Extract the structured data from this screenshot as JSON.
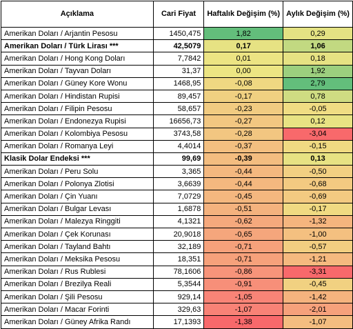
{
  "headers": [
    "Açıklama",
    "Cari Fiyat",
    "Haftalık Değişim (%)",
    "Aylık Değişim (%)"
  ],
  "rows": [
    {
      "label": "Amerikan Doları / Arjantin Pesosu",
      "price": "1450,475",
      "weekly": "1,82",
      "monthly": "0,29",
      "wcol": "#63be7b",
      "mcol": "#e4e283",
      "bold": false
    },
    {
      "label": "Amerikan Doları / Türk Lirası ***",
      "price": "42,5079",
      "weekly": "0,17",
      "monthly": "1,06",
      "wcol": "#e6e283",
      "mcol": "#c2d981",
      "bold": true
    },
    {
      "label": "Amerikan Doları / Hong Kong Doları",
      "price": "7,7842",
      "weekly": "0,01",
      "monthly": "0,18",
      "wcol": "#ece483",
      "mcol": "#e6e283",
      "bold": false
    },
    {
      "label": "Amerikan Doları / Tayvan Doları",
      "price": "31,37",
      "weekly": "0,00",
      "monthly": "1,92",
      "wcol": "#ece583",
      "mcol": "#9ccf7e",
      "bold": false
    },
    {
      "label": "Amerikan Doları / Güney Kore Wonu",
      "price": "1468,95",
      "weekly": "-0,08",
      "monthly": "2,79",
      "wcol": "#efd882",
      "mcol": "#63be7b",
      "bold": false
    },
    {
      "label": "Amerikan Doları / Hindistan Rupisi",
      "price": "89,457",
      "weekly": "-0,17",
      "monthly": "0,78",
      "wcol": "#f0d081",
      "mcol": "#cfdc82",
      "bold": false
    },
    {
      "label": "Amerikan Doları / Filipin Pesosu",
      "price": "58,657",
      "weekly": "-0,23",
      "monthly": "-0,05",
      "wcol": "#f1cb81",
      "mcol": "#f0dd83",
      "bold": false
    },
    {
      "label": "Amerikan Doları / Endonezya Rupisi",
      "price": "16656,73",
      "weekly": "-0,27",
      "monthly": "0,12",
      "wcol": "#f2c781",
      "mcol": "#e8e383",
      "bold": false
    },
    {
      "label": "Amerikan Doları / Kolombiya Pesosu",
      "price": "3743,58",
      "weekly": "-0,28",
      "monthly": "-3,04",
      "wcol": "#f2c681",
      "mcol": "#f8696b",
      "bold": false
    },
    {
      "label": "Amerikan Doları / Romanya Leyi",
      "price": "4,4014",
      "weekly": "-0,37",
      "monthly": "-0,15",
      "wcol": "#f3bf80",
      "mcol": "#f0da82",
      "bold": false
    },
    {
      "label": "Klasik Dolar Endeksi ***",
      "price": "99,69",
      "weekly": "-0,39",
      "monthly": "0,13",
      "wcol": "#f3bd80",
      "mcol": "#e7e283",
      "bold": true
    },
    {
      "label": "Amerikan Doları / Peru Solu",
      "price": "3,365",
      "weekly": "-0,44",
      "monthly": "-0,50",
      "wcol": "#f4b87f",
      "mcol": "#f2d082",
      "bold": false
    },
    {
      "label": "Amerikan Doları / Polonya Zlotisi",
      "price": "3,6639",
      "weekly": "-0,44",
      "monthly": "-0,68",
      "wcol": "#f4b87f",
      "mcol": "#f3ca81",
      "bold": false
    },
    {
      "label": "Amerikan Doları / Çin Yuanı",
      "price": "7,0729",
      "weekly": "-0,45",
      "monthly": "-0,69",
      "wcol": "#f4b77f",
      "mcol": "#f3ca81",
      "bold": false
    },
    {
      "label": "Amerikan Doları / Bulgar Levası",
      "price": "1,6878",
      "weekly": "-0,51",
      "monthly": "-0,17",
      "wcol": "#f4b27e",
      "mcol": "#f0da82",
      "bold": false
    },
    {
      "label": "Amerikan Doları / Malezya Ringgiti",
      "price": "4,1321",
      "weekly": "-0,62",
      "monthly": "-1,32",
      "wcol": "#f5a97d",
      "mcol": "#f5b57e",
      "bold": false
    },
    {
      "label": "Amerikan Doları / Çek Korunası",
      "price": "20,9018",
      "weekly": "-0,65",
      "monthly": "-1,00",
      "wcol": "#f5a67c",
      "mcol": "#f4c080",
      "bold": false
    },
    {
      "label": "Amerikan Doları / Tayland Bahtı",
      "price": "32,189",
      "weekly": "-0,71",
      "monthly": "-0,57",
      "wcol": "#f6a17b",
      "mcol": "#f2ce81",
      "bold": false
    },
    {
      "label": "Amerikan Doları / Meksika Pesosu",
      "price": "18,351",
      "weekly": "-0,71",
      "monthly": "-1,21",
      "wcol": "#f6a17b",
      "mcol": "#f5b97f",
      "bold": false
    },
    {
      "label": "Amerikan Doları / Rus Rublesi",
      "price": "78,1606",
      "weekly": "-0,86",
      "monthly": "-3,31",
      "wcol": "#f7947a",
      "mcol": "#f8696b",
      "bold": false
    },
    {
      "label": "Amerikan Doları / Brezilya Reali",
      "price": "5,3544",
      "weekly": "-0,91",
      "monthly": "-0,45",
      "wcol": "#f78f79",
      "mcol": "#f1d181",
      "bold": false
    },
    {
      "label": "Amerikan Doları / Şili Pesosu",
      "price": "929,14",
      "weekly": "-1,05",
      "monthly": "-1,42",
      "wcol": "#f88477",
      "mcol": "#f5b37e",
      "bold": false
    },
    {
      "label": "Amerikan Doları / Macar Forinti",
      "price": "329,63",
      "weekly": "-1,07",
      "monthly": "-2,01",
      "wcol": "#f88276",
      "mcol": "#f6a17b",
      "bold": false
    },
    {
      "label": "Amerikan Doları / Güney Afrika Randı",
      "price": "17,1393",
      "weekly": "-1,38",
      "monthly": "-1,07",
      "wcol": "#f8696b",
      "mcol": "#f4bd80",
      "bold": false
    }
  ]
}
